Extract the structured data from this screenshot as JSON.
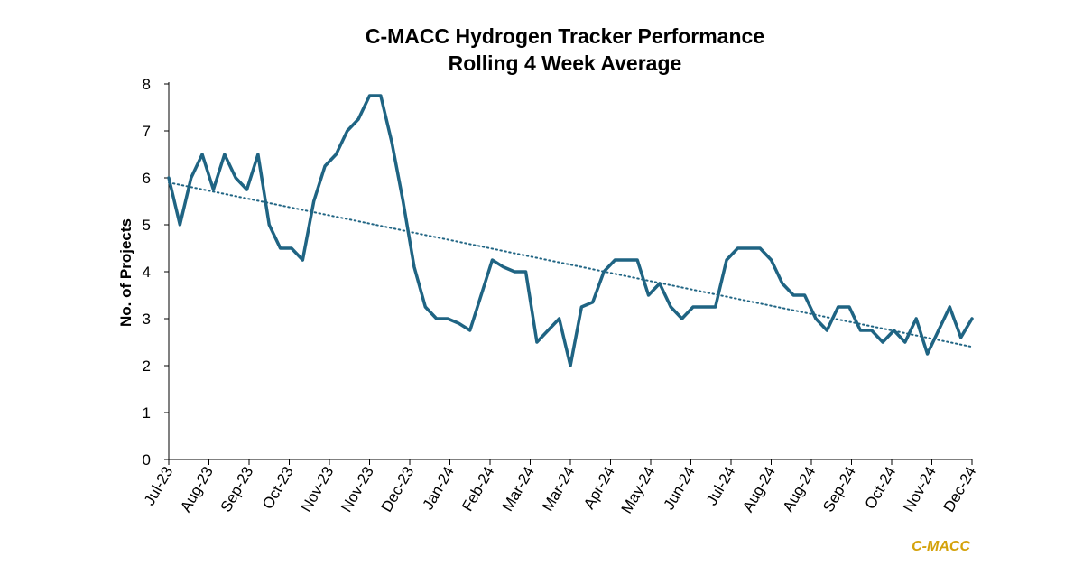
{
  "chart_data": {
    "type": "line",
    "title": [
      "C-MACC Hydrogen Tracker Performance",
      "Rolling 4 Week Average"
    ],
    "xlabel": "",
    "ylabel": "No. of Projects",
    "ylim": [
      0,
      8
    ],
    "yticks": [
      0,
      1,
      2,
      3,
      4,
      5,
      6,
      7,
      8
    ],
    "xtick_labels": [
      "Jul-23",
      "Aug-23",
      "Sep-23",
      "Oct-23",
      "Nov-23",
      "Nov-23",
      "Dec-23",
      "Jan-24",
      "Feb-24",
      "Mar-24",
      "Mar-24",
      "Apr-24",
      "May-24",
      "Jun-24",
      "Jul-24",
      "Aug-24",
      "Aug-24",
      "Sep-24",
      "Oct-24",
      "Nov-24",
      "Dec-24"
    ],
    "grid": false,
    "legend": "none",
    "series": [
      {
        "name": "Rolling 4 Week Average",
        "color": "#1F6483",
        "values": [
          6.0,
          5.0,
          6.0,
          6.5,
          5.75,
          6.5,
          6.0,
          5.75,
          6.5,
          5.0,
          4.5,
          4.5,
          4.25,
          5.5,
          6.25,
          6.5,
          7.0,
          7.25,
          7.75,
          7.75,
          6.75,
          5.5,
          4.1,
          3.25,
          3.0,
          3.0,
          2.9,
          2.75,
          3.5,
          4.25,
          4.1,
          4.0,
          4.0,
          2.5,
          2.75,
          3.0,
          2.0,
          3.25,
          3.35,
          4.0,
          4.25,
          4.25,
          4.25,
          3.5,
          3.75,
          3.25,
          3.0,
          3.25,
          3.25,
          3.25,
          4.25,
          4.5,
          4.5,
          4.5,
          4.25,
          3.75,
          3.5,
          3.5,
          3.0,
          2.75,
          3.25,
          3.25,
          2.75,
          2.75,
          2.5,
          2.75,
          2.5,
          3.0,
          2.25,
          2.75,
          3.25,
          2.6,
          3.0
        ]
      },
      {
        "name": "Linear trend",
        "color": "#1F6483",
        "style": "dotted",
        "start": 5.9,
        "end": 2.4
      }
    ]
  },
  "watermark": "C-MACC",
  "colors": {
    "line": "#1F6483",
    "watermark": "#D4A20B",
    "axis": "#000000"
  }
}
